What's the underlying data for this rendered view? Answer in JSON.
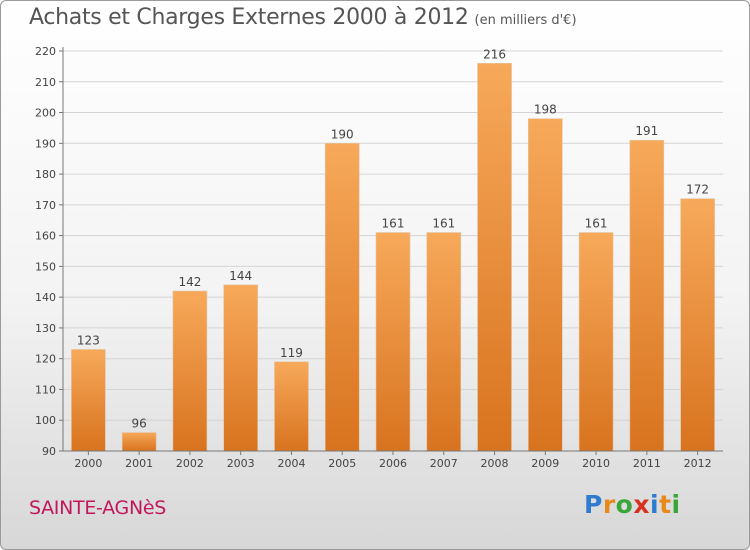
{
  "header": {
    "title": "Achats et Charges Externes 2000 à 2012",
    "unit": "(en milliers d'€)"
  },
  "footer": {
    "town": "SAINTE-AGNèS",
    "logo": "Proxiti"
  },
  "colors": {
    "bar_top": "#f7a95a",
    "bar_bottom": "#d8731f",
    "title": "#555555",
    "town": "#c2185b"
  },
  "chart_data": {
    "type": "bar",
    "title": "Achats et Charges Externes 2000 à 2012",
    "categories": [
      "2000",
      "2001",
      "2002",
      "2003",
      "2004",
      "2005",
      "2006",
      "2007",
      "2008",
      "2009",
      "2010",
      "2011",
      "2012"
    ],
    "values": [
      123,
      96,
      142,
      144,
      119,
      190,
      161,
      161,
      216,
      198,
      161,
      191,
      172
    ],
    "ylim": [
      90,
      220
    ],
    "yticks": [
      90,
      100,
      110,
      120,
      130,
      140,
      150,
      160,
      170,
      180,
      190,
      200,
      210,
      220
    ],
    "grid": true
  }
}
